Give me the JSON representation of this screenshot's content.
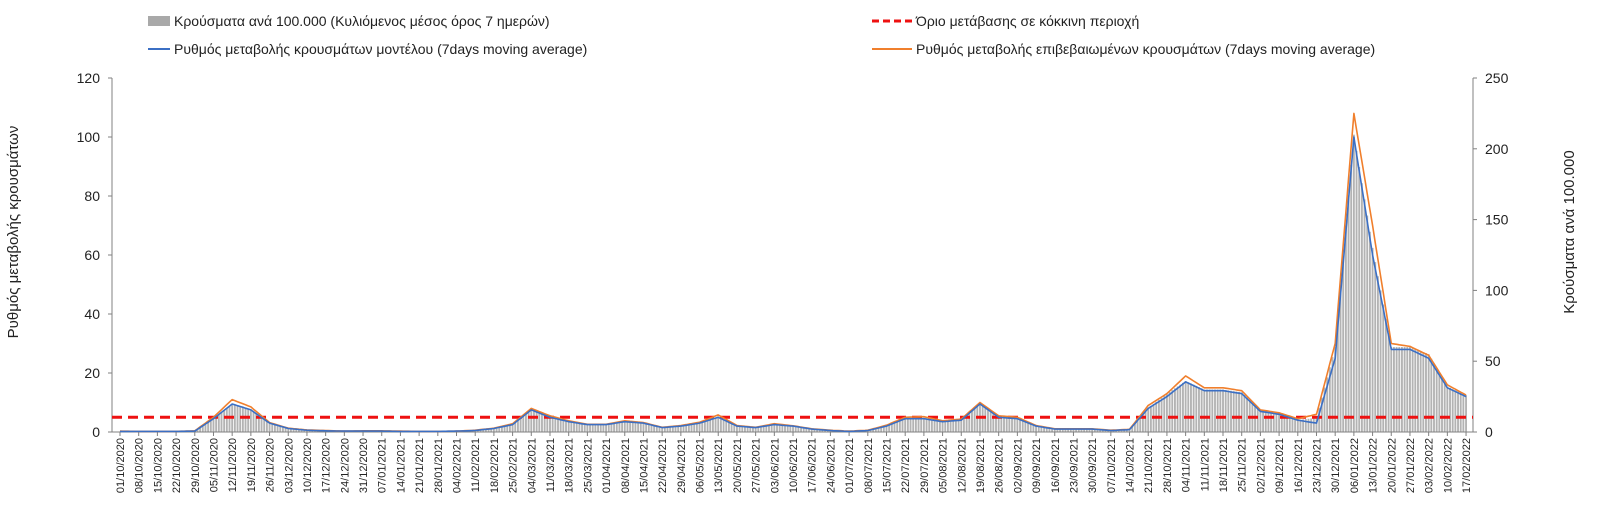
{
  "chart_data": {
    "type": "bar+line",
    "legend": {
      "bars": "Κρούσματα ανά 100.000 (Κυλιόμενος μέσος όρος 7 ημερών)",
      "threshold": "Όριο μετάβασης σε κόκκινη περιοχή",
      "model": "Ρυθμός μεταβολής κρουσμάτων μοντέλου (7days moving average)",
      "confirmed": "Ρυθμός μεταβολής επιβεβαιωμένων κρουσμάτων (7days moving average)"
    },
    "ylabel_left": "Ρυθμός μεταβολής κρουσμάτων",
    "ylabel_right": "Κρούσματα ανά 100.000",
    "y_left": {
      "min": 0,
      "max": 120,
      "ticks": [
        0,
        20,
        40,
        60,
        80,
        100,
        120
      ]
    },
    "y_right": {
      "min": 0,
      "max": 250,
      "ticks": [
        0,
        50,
        100,
        150,
        200,
        250
      ]
    },
    "threshold_value": 5,
    "x_start": "2020-10-01",
    "x_end": "2022-02-22",
    "x_tick_labels": [
      "01/10/2020",
      "08/10/2020",
      "15/10/2020",
      "22/10/2020",
      "29/10/2020",
      "05/11/2020",
      "12/11/2020",
      "19/11/2020",
      "26/11/2020",
      "03/12/2020",
      "10/12/2020",
      "17/12/2020",
      "24/12/2020",
      "31/12/2020",
      "07/01/2021",
      "14/01/2021",
      "21/01/2021",
      "28/01/2021",
      "04/02/2021",
      "11/02/2021",
      "18/02/2021",
      "25/02/2021",
      "04/03/2021",
      "11/03/2021",
      "18/03/2021",
      "25/03/2021",
      "01/04/2021",
      "08/04/2021",
      "15/04/2021",
      "22/04/2021",
      "29/04/2021",
      "06/05/2021",
      "13/05/2021",
      "20/05/2021",
      "27/05/2021",
      "03/06/2021",
      "10/06/2021",
      "17/06/2021",
      "24/06/2021",
      "01/07/2021",
      "08/07/2021",
      "15/07/2021",
      "22/07/2021",
      "29/07/2021",
      "05/08/2021",
      "12/08/2021",
      "19/08/2021",
      "26/08/2021",
      "02/09/2021",
      "09/09/2021",
      "16/09/2021",
      "23/09/2021",
      "30/09/2021",
      "07/10/2021",
      "14/10/2021",
      "21/10/2021",
      "28/10/2021",
      "04/11/2021",
      "11/11/2021",
      "18/11/2021",
      "25/11/2021",
      "02/12/2021",
      "09/12/2021",
      "16/12/2021",
      "23/12/2021",
      "30/12/2021",
      "06/01/2022",
      "13/01/2022",
      "20/01/2022",
      "27/01/2022",
      "03/02/2022",
      "10/02/2022",
      "17/02/2022"
    ],
    "model_series_weekly": [
      0.2,
      0.2,
      0.2,
      0.2,
      0.3,
      4.5,
      9.5,
      7.5,
      3,
      1.2,
      0.6,
      0.4,
      0.3,
      0.3,
      0.3,
      0.2,
      0.2,
      0.2,
      0.3,
      0.5,
      1.2,
      2.5,
      7.5,
      5,
      3.5,
      2.5,
      2.5,
      3.5,
      3,
      1.5,
      2,
      3,
      5,
      2,
      1.5,
      2.5,
      2,
      1,
      0.5,
      0.2,
      0.5,
      2,
      4.5,
      4.5,
      3.5,
      4,
      9.5,
      5,
      4.5,
      2,
      1,
      1,
      1,
      0.5,
      0.8,
      8,
      12,
      17,
      14,
      14,
      13,
      7,
      6,
      4,
      3,
      25,
      100,
      60,
      28,
      28,
      25,
      15,
      12
    ],
    "confirmed_series_weekly": [
      0.3,
      0.2,
      0.2,
      0.2,
      0.4,
      5,
      11,
      8.5,
      3.2,
      1.3,
      0.7,
      0.5,
      0.3,
      0.4,
      0.4,
      0.3,
      0.2,
      0.2,
      0.3,
      0.6,
      1.3,
      2.8,
      8,
      5.5,
      3.8,
      2.6,
      2.6,
      3.8,
      3.2,
      1.6,
      2.2,
      3.3,
      5.8,
      2.2,
      1.6,
      2.8,
      2.1,
      1.1,
      0.6,
      0.3,
      0.6,
      2.3,
      5,
      5.2,
      3.8,
      4.4,
      10,
      5.5,
      5,
      2.2,
      1.1,
      1.1,
      1.1,
      0.6,
      0.9,
      9,
      13,
      19,
      15,
      15,
      14,
      7.5,
      6.5,
      4.5,
      6,
      30,
      108,
      70,
      30,
      29,
      26,
      16,
      12.5
    ],
    "bars_per100k_weekly": [
      0.4,
      0.4,
      0.4,
      0.4,
      0.6,
      9,
      20,
      16,
      6,
      2.5,
      1.2,
      0.8,
      0.6,
      0.6,
      0.6,
      0.4,
      0.4,
      0.4,
      0.6,
      1,
      2.5,
      5,
      16,
      11,
      7.5,
      5,
      5,
      7.5,
      6,
      3,
      4,
      6,
      11,
      4,
      3,
      5,
      4,
      2,
      1,
      0.4,
      1,
      4,
      10,
      10,
      7.5,
      8.5,
      20,
      11,
      10,
      4,
      2,
      2,
      2,
      1,
      1.5,
      17,
      27,
      36,
      30,
      30,
      28,
      15,
      13,
      8.5,
      10,
      60,
      210,
      130,
      60,
      60,
      55,
      32,
      26
    ]
  }
}
